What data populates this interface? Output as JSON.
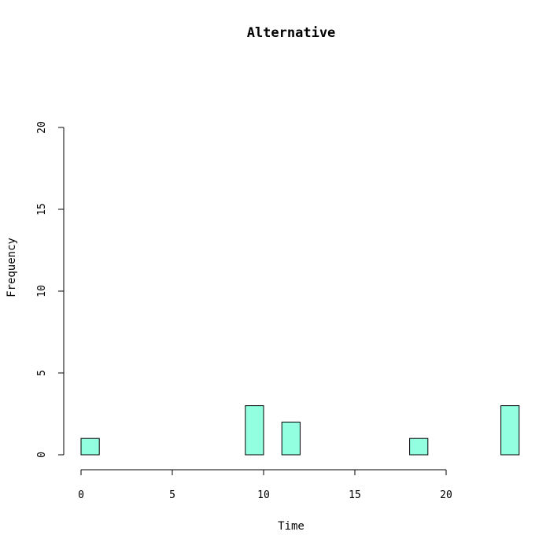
{
  "chart_data": {
    "type": "bar",
    "title": "Alternative",
    "xlabel": "Time",
    "ylabel": "Frequency",
    "x_ticks": [
      0,
      5,
      10,
      15,
      20
    ],
    "y_ticks": [
      0,
      5,
      10,
      15,
      20
    ],
    "xlim": [
      0,
      24
    ],
    "ylim": [
      0,
      20
    ],
    "bins": [
      {
        "start": 0,
        "end": 1,
        "count": 1
      },
      {
        "start": 1,
        "end": 2,
        "count": 0
      },
      {
        "start": 2,
        "end": 3,
        "count": 0
      },
      {
        "start": 3,
        "end": 4,
        "count": 0
      },
      {
        "start": 4,
        "end": 5,
        "count": 0
      },
      {
        "start": 5,
        "end": 6,
        "count": 0
      },
      {
        "start": 6,
        "end": 7,
        "count": 0
      },
      {
        "start": 7,
        "end": 8,
        "count": 0
      },
      {
        "start": 8,
        "end": 9,
        "count": 0
      },
      {
        "start": 9,
        "end": 10,
        "count": 3
      },
      {
        "start": 10,
        "end": 11,
        "count": 0
      },
      {
        "start": 11,
        "end": 12,
        "count": 2
      },
      {
        "start": 12,
        "end": 13,
        "count": 0
      },
      {
        "start": 13,
        "end": 14,
        "count": 0
      },
      {
        "start": 14,
        "end": 15,
        "count": 0
      },
      {
        "start": 15,
        "end": 16,
        "count": 0
      },
      {
        "start": 16,
        "end": 17,
        "count": 0
      },
      {
        "start": 17,
        "end": 18,
        "count": 0
      },
      {
        "start": 18,
        "end": 19,
        "count": 1
      },
      {
        "start": 19,
        "end": 20,
        "count": 0
      },
      {
        "start": 20,
        "end": 21,
        "count": 0
      },
      {
        "start": 21,
        "end": 22,
        "count": 0
      },
      {
        "start": 22,
        "end": 23,
        "count": 0
      },
      {
        "start": 23,
        "end": 24,
        "count": 3
      }
    ],
    "bar_color": "#91ffe0",
    "border_color": "#000000",
    "grid": false
  }
}
